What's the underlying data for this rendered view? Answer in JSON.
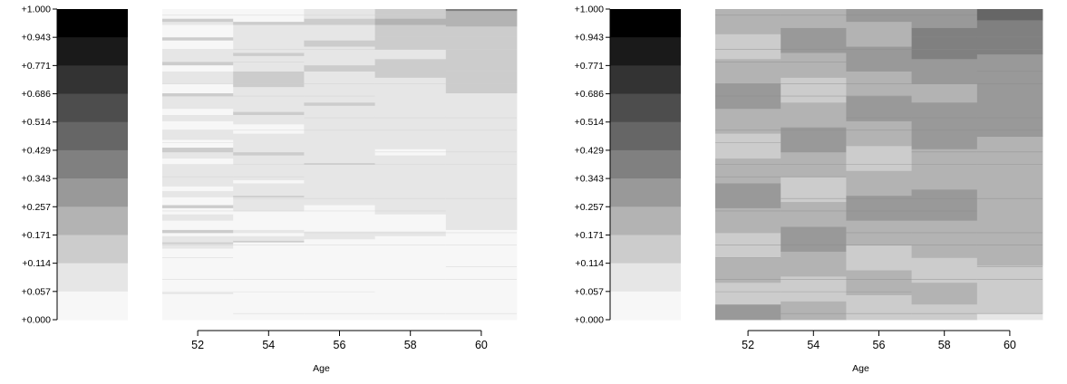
{
  "chart_data": [
    {
      "type": "heatmap",
      "title": "",
      "xlabel": "Age",
      "ylabel": "",
      "x_ticks": [
        "52",
        "54",
        "56",
        "58",
        "60"
      ],
      "x_range": [
        51,
        61
      ],
      "scale": {
        "tick_labels": [
          "+1.000",
          "+0.943",
          "+0.771",
          "+0.686",
          "+0.514",
          "+0.429",
          "+0.343",
          "+0.257",
          "+0.171",
          "+0.114",
          "+0.057",
          "+0.000"
        ],
        "colors": [
          "#000000",
          "#1a1a1a",
          "#333333",
          "#4d4d4d",
          "#666666",
          "#808080",
          "#999999",
          "#b3b3b3",
          "#cccccc",
          "#e6e6e6",
          "#f7f7f7"
        ]
      },
      "columns": [
        {
          "age": 52,
          "bands": [
            {
              "from": 0.0,
              "to": 0.085,
              "color": "#f7f7f7"
            },
            {
              "from": 0.085,
              "to": 0.087,
              "color": "#cccccc"
            },
            {
              "from": 0.087,
              "to": 0.23,
              "color": "#f7f7f7"
            },
            {
              "from": 0.23,
              "to": 0.245,
              "color": "#e6e6e6"
            },
            {
              "from": 0.245,
              "to": 0.25,
              "color": "#cccccc"
            },
            {
              "from": 0.25,
              "to": 0.27,
              "color": "#e6e6e6"
            },
            {
              "from": 0.27,
              "to": 0.28,
              "color": "#f7f7f7"
            },
            {
              "from": 0.28,
              "to": 0.29,
              "color": "#cccccc"
            },
            {
              "from": 0.29,
              "to": 0.32,
              "color": "#f7f7f7"
            },
            {
              "from": 0.32,
              "to": 0.34,
              "color": "#e6e6e6"
            },
            {
              "from": 0.34,
              "to": 0.36,
              "color": "#f7f7f7"
            },
            {
              "from": 0.36,
              "to": 0.37,
              "color": "#cccccc"
            },
            {
              "from": 0.37,
              "to": 0.395,
              "color": "#f7f7f7"
            },
            {
              "from": 0.395,
              "to": 0.415,
              "color": "#e6e6e6"
            },
            {
              "from": 0.415,
              "to": 0.43,
              "color": "#f7f7f7"
            },
            {
              "from": 0.43,
              "to": 0.5,
              "color": "#e6e6e6"
            },
            {
              "from": 0.5,
              "to": 0.52,
              "color": "#f7f7f7"
            },
            {
              "from": 0.52,
              "to": 0.54,
              "color": "#e6e6e6"
            },
            {
              "from": 0.54,
              "to": 0.555,
              "color": "#cccccc"
            },
            {
              "from": 0.555,
              "to": 0.58,
              "color": "#f7f7f7"
            },
            {
              "from": 0.58,
              "to": 0.61,
              "color": "#e6e6e6"
            },
            {
              "from": 0.61,
              "to": 0.64,
              "color": "#f7f7f7"
            },
            {
              "from": 0.64,
              "to": 0.66,
              "color": "#e6e6e6"
            },
            {
              "from": 0.66,
              "to": 0.68,
              "color": "#f7f7f7"
            },
            {
              "from": 0.68,
              "to": 0.72,
              "color": "#e6e6e6"
            },
            {
              "from": 0.72,
              "to": 0.73,
              "color": "#cccccc"
            },
            {
              "from": 0.73,
              "to": 0.76,
              "color": "#f7f7f7"
            },
            {
              "from": 0.76,
              "to": 0.8,
              "color": "#e6e6e6"
            },
            {
              "from": 0.8,
              "to": 0.82,
              "color": "#f7f7f7"
            },
            {
              "from": 0.82,
              "to": 0.83,
              "color": "#cccccc"
            },
            {
              "from": 0.83,
              "to": 0.87,
              "color": "#e6e6e6"
            },
            {
              "from": 0.87,
              "to": 0.9,
              "color": "#f7f7f7"
            },
            {
              "from": 0.9,
              "to": 0.91,
              "color": "#cccccc"
            },
            {
              "from": 0.91,
              "to": 0.95,
              "color": "#f7f7f7"
            },
            {
              "from": 0.95,
              "to": 0.96,
              "color": "#e6e6e6"
            },
            {
              "from": 0.96,
              "to": 0.97,
              "color": "#cccccc"
            },
            {
              "from": 0.97,
              "to": 1.0,
              "color": "#f7f7f7"
            }
          ]
        },
        {
          "age": 54,
          "bands": [
            {
              "from": 0.0,
              "to": 0.25,
              "color": "#f7f7f7"
            },
            {
              "from": 0.25,
              "to": 0.255,
              "color": "#cccccc"
            },
            {
              "from": 0.255,
              "to": 0.27,
              "color": "#e6e6e6"
            },
            {
              "from": 0.27,
              "to": 0.28,
              "color": "#f7f7f7"
            },
            {
              "from": 0.28,
              "to": 0.29,
              "color": "#e6e6e6"
            },
            {
              "from": 0.29,
              "to": 0.35,
              "color": "#f7f7f7"
            },
            {
              "from": 0.35,
              "to": 0.395,
              "color": "#e6e6e6"
            },
            {
              "from": 0.395,
              "to": 0.4,
              "color": "#cccccc"
            },
            {
              "from": 0.4,
              "to": 0.44,
              "color": "#e6e6e6"
            },
            {
              "from": 0.44,
              "to": 0.45,
              "color": "#f7f7f7"
            },
            {
              "from": 0.45,
              "to": 0.53,
              "color": "#e6e6e6"
            },
            {
              "from": 0.53,
              "to": 0.54,
              "color": "#cccccc"
            },
            {
              "from": 0.54,
              "to": 0.6,
              "color": "#e6e6e6"
            },
            {
              "from": 0.6,
              "to": 0.63,
              "color": "#f7f7f7"
            },
            {
              "from": 0.63,
              "to": 0.66,
              "color": "#e6e6e6"
            },
            {
              "from": 0.66,
              "to": 0.67,
              "color": "#cccccc"
            },
            {
              "from": 0.67,
              "to": 0.75,
              "color": "#e6e6e6"
            },
            {
              "from": 0.75,
              "to": 0.8,
              "color": "#cccccc"
            },
            {
              "from": 0.8,
              "to": 0.85,
              "color": "#e6e6e6"
            },
            {
              "from": 0.85,
              "to": 0.86,
              "color": "#cccccc"
            },
            {
              "from": 0.86,
              "to": 0.95,
              "color": "#e6e6e6"
            },
            {
              "from": 0.95,
              "to": 0.96,
              "color": "#cccccc"
            },
            {
              "from": 0.96,
              "to": 1.0,
              "color": "#f7f7f7"
            }
          ]
        },
        {
          "age": 56,
          "bands": [
            {
              "from": 0.0,
              "to": 0.26,
              "color": "#f7f7f7"
            },
            {
              "from": 0.26,
              "to": 0.285,
              "color": "#e6e6e6"
            },
            {
              "from": 0.285,
              "to": 0.37,
              "color": "#f7f7f7"
            },
            {
              "from": 0.37,
              "to": 0.5,
              "color": "#e6e6e6"
            },
            {
              "from": 0.5,
              "to": 0.505,
              "color": "#cccccc"
            },
            {
              "from": 0.505,
              "to": 0.69,
              "color": "#e6e6e6"
            },
            {
              "from": 0.69,
              "to": 0.7,
              "color": "#cccccc"
            },
            {
              "from": 0.7,
              "to": 0.8,
              "color": "#e6e6e6"
            },
            {
              "from": 0.8,
              "to": 0.82,
              "color": "#cccccc"
            },
            {
              "from": 0.82,
              "to": 0.88,
              "color": "#e6e6e6"
            },
            {
              "from": 0.88,
              "to": 0.9,
              "color": "#cccccc"
            },
            {
              "from": 0.9,
              "to": 0.95,
              "color": "#e6e6e6"
            },
            {
              "from": 0.95,
              "to": 0.97,
              "color": "#cccccc"
            },
            {
              "from": 0.97,
              "to": 1.0,
              "color": "#e6e6e6"
            }
          ]
        },
        {
          "age": 58,
          "bands": [
            {
              "from": 0.0,
              "to": 0.27,
              "color": "#f7f7f7"
            },
            {
              "from": 0.27,
              "to": 0.285,
              "color": "#e6e6e6"
            },
            {
              "from": 0.285,
              "to": 0.34,
              "color": "#f7f7f7"
            },
            {
              "from": 0.34,
              "to": 0.53,
              "color": "#e6e6e6"
            },
            {
              "from": 0.53,
              "to": 0.55,
              "color": "#f7f7f7"
            },
            {
              "from": 0.55,
              "to": 0.78,
              "color": "#e6e6e6"
            },
            {
              "from": 0.78,
              "to": 0.84,
              "color": "#cccccc"
            },
            {
              "from": 0.84,
              "to": 0.87,
              "color": "#e6e6e6"
            },
            {
              "from": 0.87,
              "to": 0.95,
              "color": "#cccccc"
            },
            {
              "from": 0.95,
              "to": 0.97,
              "color": "#b3b3b3"
            },
            {
              "from": 0.97,
              "to": 1.0,
              "color": "#cccccc"
            }
          ]
        },
        {
          "age": 60,
          "bands": [
            {
              "from": 0.0,
              "to": 0.29,
              "color": "#f7f7f7"
            },
            {
              "from": 0.29,
              "to": 0.73,
              "color": "#e6e6e6"
            },
            {
              "from": 0.73,
              "to": 0.945,
              "color": "#cccccc"
            },
            {
              "from": 0.945,
              "to": 0.995,
              "color": "#b3b3b3"
            },
            {
              "from": 0.995,
              "to": 1.0,
              "color": "#808080"
            }
          ]
        }
      ]
    },
    {
      "type": "heatmap",
      "title": "",
      "xlabel": "Age",
      "ylabel": "",
      "x_ticks": [
        "52",
        "54",
        "56",
        "58",
        "60"
      ],
      "x_range": [
        51,
        61
      ],
      "scale": {
        "tick_labels": [
          "+1.000",
          "+0.943",
          "+0.771",
          "+0.686",
          "+0.514",
          "+0.429",
          "+0.343",
          "+0.257",
          "+0.171",
          "+0.114",
          "+0.057",
          "+0.000"
        ],
        "colors": [
          "#000000",
          "#1a1a1a",
          "#333333",
          "#4d4d4d",
          "#666666",
          "#808080",
          "#999999",
          "#b3b3b3",
          "#cccccc",
          "#e6e6e6",
          "#f7f7f7"
        ]
      },
      "columns": [
        {
          "age": 52,
          "bands": [
            {
              "from": 0.0,
              "to": 0.05,
              "color": "#999999"
            },
            {
              "from": 0.05,
              "to": 0.12,
              "color": "#cccccc"
            },
            {
              "from": 0.12,
              "to": 0.2,
              "color": "#b3b3b3"
            },
            {
              "from": 0.2,
              "to": 0.28,
              "color": "#cccccc"
            },
            {
              "from": 0.28,
              "to": 0.36,
              "color": "#b3b3b3"
            },
            {
              "from": 0.36,
              "to": 0.44,
              "color": "#999999"
            },
            {
              "from": 0.44,
              "to": 0.52,
              "color": "#b3b3b3"
            },
            {
              "from": 0.52,
              "to": 0.6,
              "color": "#cccccc"
            },
            {
              "from": 0.6,
              "to": 0.68,
              "color": "#b3b3b3"
            },
            {
              "from": 0.68,
              "to": 0.76,
              "color": "#999999"
            },
            {
              "from": 0.76,
              "to": 0.84,
              "color": "#b3b3b3"
            },
            {
              "from": 0.84,
              "to": 0.92,
              "color": "#cccccc"
            },
            {
              "from": 0.92,
              "to": 1.0,
              "color": "#b3b3b3"
            }
          ]
        },
        {
          "age": 54,
          "bands": [
            {
              "from": 0.0,
              "to": 0.06,
              "color": "#b3b3b3"
            },
            {
              "from": 0.06,
              "to": 0.14,
              "color": "#cccccc"
            },
            {
              "from": 0.14,
              "to": 0.22,
              "color": "#b3b3b3"
            },
            {
              "from": 0.22,
              "to": 0.3,
              "color": "#999999"
            },
            {
              "from": 0.3,
              "to": 0.38,
              "color": "#b3b3b3"
            },
            {
              "from": 0.38,
              "to": 0.46,
              "color": "#cccccc"
            },
            {
              "from": 0.46,
              "to": 0.54,
              "color": "#b3b3b3"
            },
            {
              "from": 0.54,
              "to": 0.62,
              "color": "#999999"
            },
            {
              "from": 0.62,
              "to": 0.7,
              "color": "#b3b3b3"
            },
            {
              "from": 0.7,
              "to": 0.78,
              "color": "#cccccc"
            },
            {
              "from": 0.78,
              "to": 0.86,
              "color": "#b3b3b3"
            },
            {
              "from": 0.86,
              "to": 0.94,
              "color": "#999999"
            },
            {
              "from": 0.94,
              "to": 1.0,
              "color": "#b3b3b3"
            }
          ]
        },
        {
          "age": 56,
          "bands": [
            {
              "from": 0.0,
              "to": 0.08,
              "color": "#cccccc"
            },
            {
              "from": 0.08,
              "to": 0.16,
              "color": "#b3b3b3"
            },
            {
              "from": 0.16,
              "to": 0.24,
              "color": "#cccccc"
            },
            {
              "from": 0.24,
              "to": 0.32,
              "color": "#b3b3b3"
            },
            {
              "from": 0.32,
              "to": 0.4,
              "color": "#999999"
            },
            {
              "from": 0.4,
              "to": 0.48,
              "color": "#b3b3b3"
            },
            {
              "from": 0.48,
              "to": 0.56,
              "color": "#cccccc"
            },
            {
              "from": 0.56,
              "to": 0.64,
              "color": "#b3b3b3"
            },
            {
              "from": 0.64,
              "to": 0.72,
              "color": "#999999"
            },
            {
              "from": 0.72,
              "to": 0.8,
              "color": "#b3b3b3"
            },
            {
              "from": 0.8,
              "to": 0.88,
              "color": "#999999"
            },
            {
              "from": 0.88,
              "to": 0.96,
              "color": "#b3b3b3"
            },
            {
              "from": 0.96,
              "to": 1.0,
              "color": "#999999"
            }
          ]
        },
        {
          "age": 58,
          "bands": [
            {
              "from": 0.0,
              "to": 0.05,
              "color": "#cccccc"
            },
            {
              "from": 0.05,
              "to": 0.12,
              "color": "#b3b3b3"
            },
            {
              "from": 0.12,
              "to": 0.2,
              "color": "#cccccc"
            },
            {
              "from": 0.2,
              "to": 0.32,
              "color": "#b3b3b3"
            },
            {
              "from": 0.32,
              "to": 0.42,
              "color": "#999999"
            },
            {
              "from": 0.42,
              "to": 0.55,
              "color": "#b3b3b3"
            },
            {
              "from": 0.55,
              "to": 0.7,
              "color": "#999999"
            },
            {
              "from": 0.7,
              "to": 0.76,
              "color": "#b3b3b3"
            },
            {
              "from": 0.76,
              "to": 0.84,
              "color": "#999999"
            },
            {
              "from": 0.84,
              "to": 0.94,
              "color": "#808080"
            },
            {
              "from": 0.94,
              "to": 1.0,
              "color": "#999999"
            }
          ]
        },
        {
          "age": 60,
          "bands": [
            {
              "from": 0.0,
              "to": 0.02,
              "color": "#e6e6e6"
            },
            {
              "from": 0.02,
              "to": 0.175,
              "color": "#cccccc"
            },
            {
              "from": 0.175,
              "to": 0.59,
              "color": "#b3b3b3"
            },
            {
              "from": 0.59,
              "to": 0.855,
              "color": "#999999"
            },
            {
              "from": 0.855,
              "to": 0.965,
              "color": "#808080"
            },
            {
              "from": 0.965,
              "to": 1.0,
              "color": "#666666"
            }
          ]
        }
      ]
    }
  ]
}
